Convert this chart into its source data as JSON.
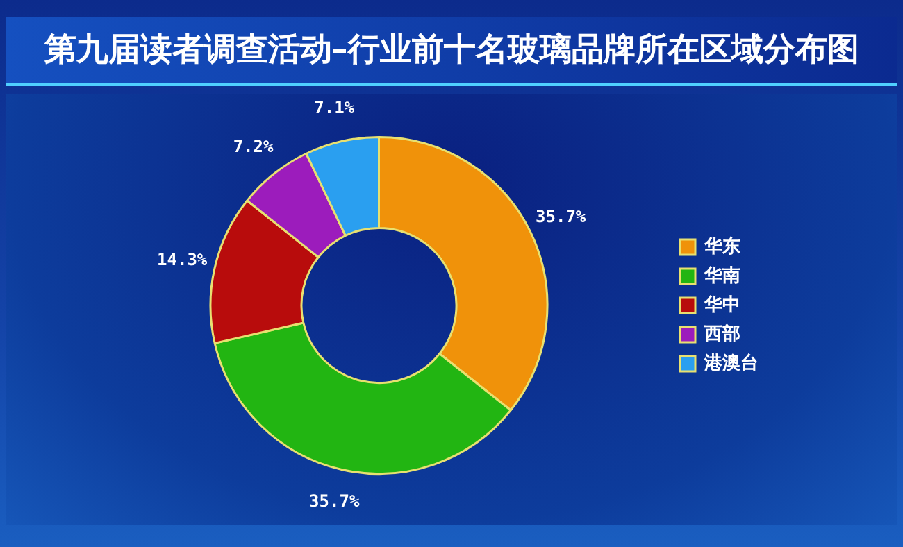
{
  "chart_data": {
    "type": "donut",
    "title": "第九届读者调查活动–行业前十名玻璃品牌所在区域分布图",
    "categories": [
      "华东",
      "华南",
      "华中",
      "西部",
      "港澳台"
    ],
    "values": [
      35.7,
      35.7,
      14.3,
      7.2,
      7.1
    ],
    "value_labels": [
      "35.7%",
      "35.7%",
      "14.3%",
      "7.2%",
      "7.1%"
    ],
    "colors": [
      "#f0920a",
      "#22b512",
      "#b80c0c",
      "#9c1cbc",
      "#2a9ff0"
    ],
    "legend": "right"
  }
}
